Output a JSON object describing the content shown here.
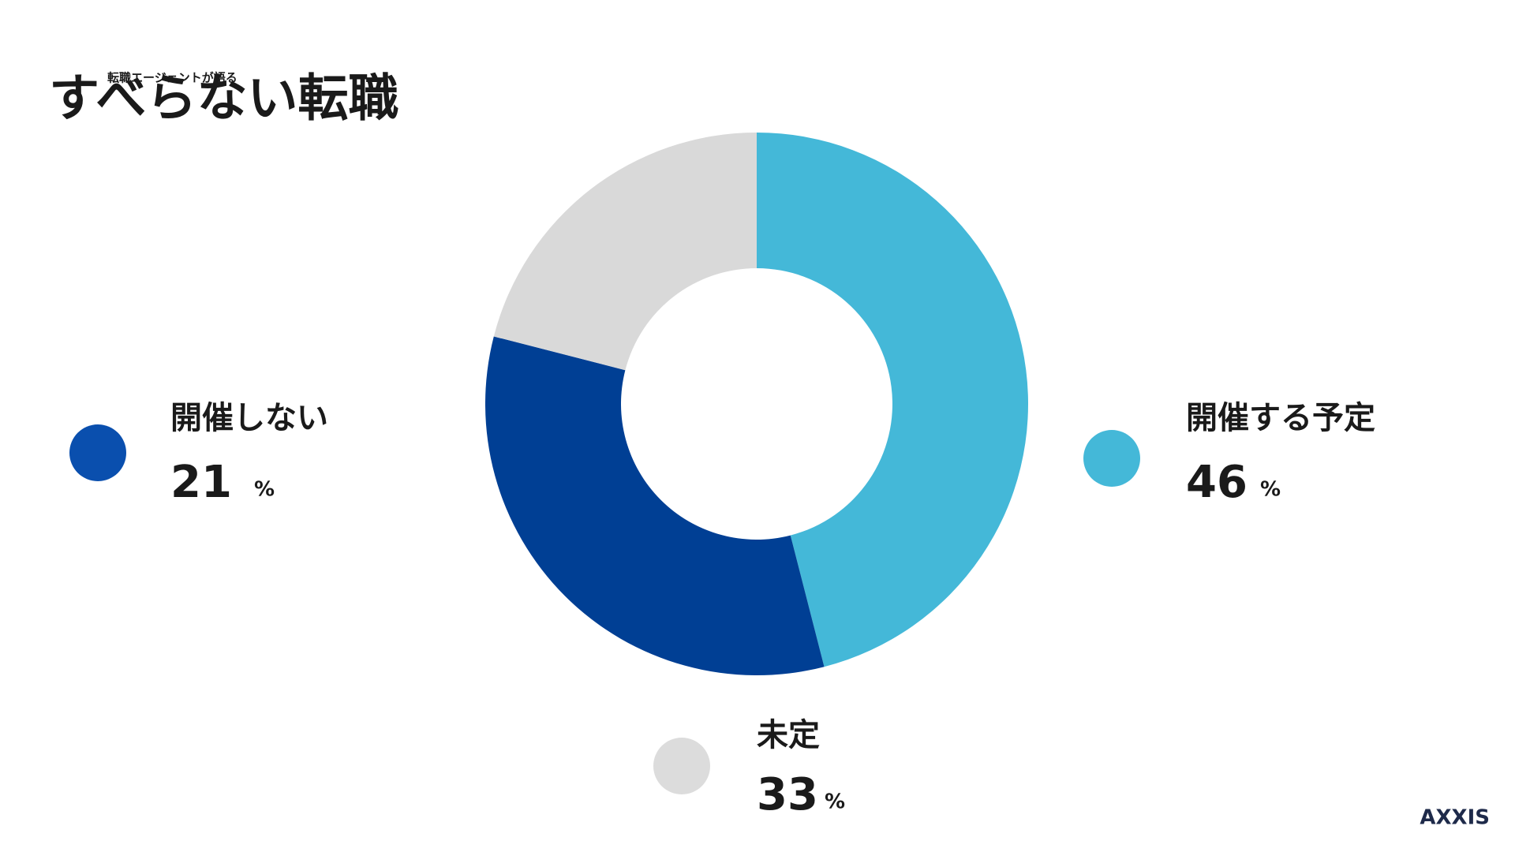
{
  "logo": {
    "subtitle": "転職エージェントが語る",
    "title": "すべらない転職",
    "brand": "AXXIS"
  },
  "chart_data": {
    "type": "donut",
    "categories": [
      "開催する予定",
      "未定",
      "開催しない"
    ],
    "values": [
      46,
      33,
      21
    ],
    "unit": "%",
    "colors": [
      "#44b8d8",
      "#003f94",
      "#d9d9d9"
    ],
    "legend_colors": [
      "#44b8d8",
      "#dcdcdc",
      "#0a4fae"
    ]
  }
}
